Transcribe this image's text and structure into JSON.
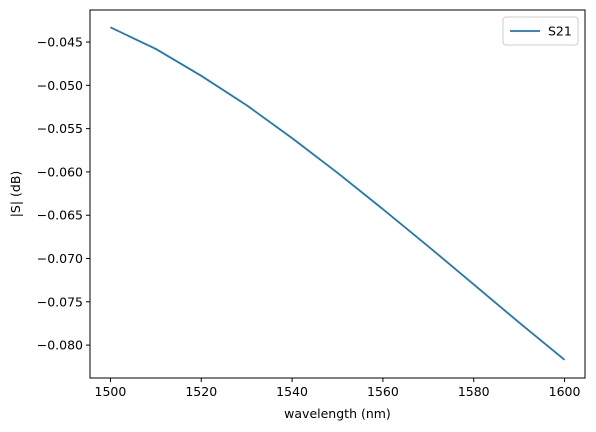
{
  "chart_data": {
    "type": "line",
    "title": "",
    "xlabel": "wavelength (nm)",
    "ylabel": "|S| (dB)",
    "xlim": [
      1495.5,
      1604.5
    ],
    "ylim": [
      -0.0838,
      -0.0413
    ],
    "xticks": [
      1500,
      1520,
      1540,
      1560,
      1580,
      1600
    ],
    "xtick_labels": [
      "1500",
      "1520",
      "1540",
      "1560",
      "1580",
      "1600"
    ],
    "yticks": [
      -0.045,
      -0.05,
      -0.055,
      -0.06,
      -0.065,
      -0.07,
      -0.075,
      -0.08
    ],
    "ytick_labels": [
      "−0.045",
      "−0.050",
      "−0.055",
      "−0.060",
      "−0.065",
      "−0.070",
      "−0.075",
      "−0.080"
    ],
    "grid": false,
    "legend_position": "top-right",
    "series": [
      {
        "name": "S21",
        "color": "#1f77b4",
        "x": [
          1500,
          1510,
          1520,
          1530,
          1540,
          1550,
          1560,
          1570,
          1580,
          1590,
          1600
        ],
        "y": [
          -0.0433,
          -0.0458,
          -0.0489,
          -0.0523,
          -0.0561,
          -0.0601,
          -0.0643,
          -0.0686,
          -0.073,
          -0.0774,
          -0.0817
        ]
      }
    ]
  }
}
